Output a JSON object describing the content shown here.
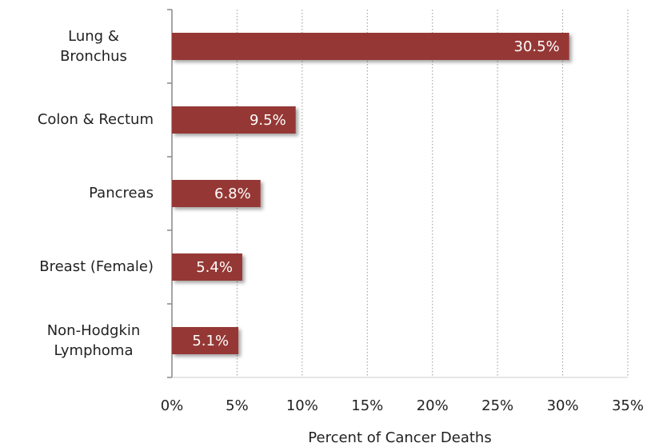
{
  "chart_data": {
    "type": "bar",
    "orientation": "horizontal",
    "x_label": "Percent of Cancer Deaths",
    "categories": [
      "Lung & Bronchus",
      "Colon & Rectum",
      "Pancreas",
      "Breast (Female)",
      "Non-Hodgkin Lymphoma"
    ],
    "values": [
      30.5,
      9.5,
      6.8,
      5.4,
      5.1
    ],
    "value_labels": [
      "30.5%",
      "9.5%",
      "6.8%",
      "5.4%",
      "5.1%"
    ],
    "color": "#953735",
    "xlim": [
      0,
      35
    ],
    "xticks": [
      {
        "value": 0,
        "label": "0%"
      },
      {
        "value": 5,
        "label": "5%"
      },
      {
        "value": 10,
        "label": "10%"
      },
      {
        "value": 15,
        "label": "15%"
      },
      {
        "value": 20,
        "label": "20%"
      },
      {
        "value": 25,
        "label": "25%"
      },
      {
        "value": 30,
        "label": "30%"
      },
      {
        "value": 35,
        "label": "35%"
      }
    ],
    "grid": true
  }
}
